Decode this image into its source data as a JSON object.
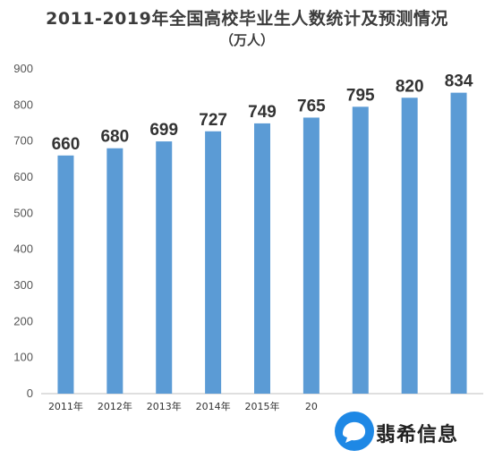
{
  "chart_data": {
    "type": "bar",
    "title": "2011-2019年全国高校毕业生人数统计及预测情况",
    "subtitle": "（万人）",
    "categories": [
      "2011年",
      "2012年",
      "2013年",
      "2014年",
      "2015年",
      "20",
      "",
      "",
      ""
    ],
    "values": [
      660,
      680,
      699,
      727,
      749,
      765,
      795,
      820,
      834
    ],
    "ylim": [
      0,
      900
    ],
    "yticks": [
      0,
      100,
      200,
      300,
      400,
      500,
      600,
      700,
      800,
      900
    ],
    "grid": false,
    "bar_color": "#5b9bd5",
    "data_labels": true
  },
  "watermark": {
    "text": "翡希信息",
    "accent_color": "#1e88e5"
  }
}
